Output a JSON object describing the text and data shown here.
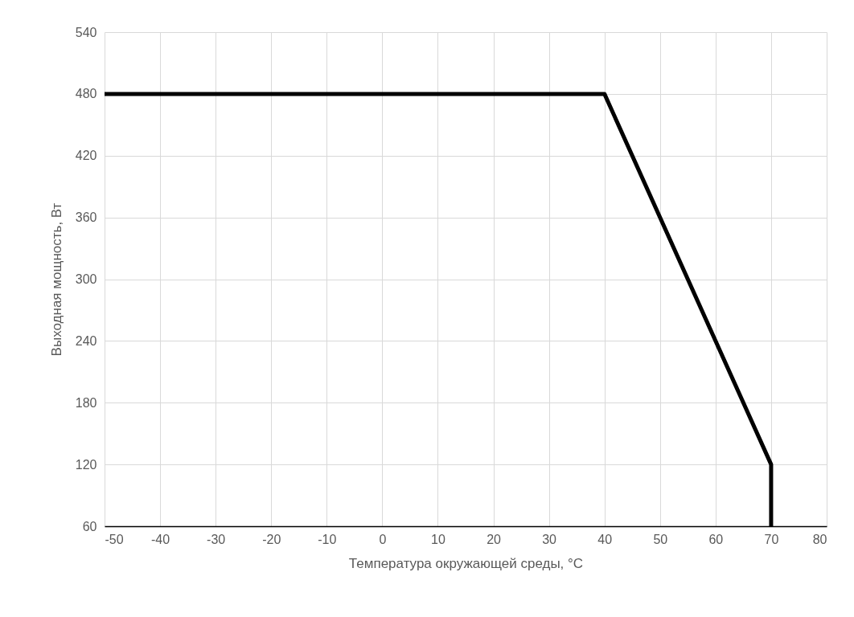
{
  "chart_data": {
    "type": "line",
    "xlabel": "Температура окружающей среды, °C",
    "ylabel": "Выходная мощность, Вт",
    "x": [
      -50,
      40,
      70,
      70
    ],
    "series": [
      {
        "color": "#000000",
        "values": [
          480,
          480,
          120,
          60
        ]
      }
    ],
    "xlim": [
      -50,
      80
    ],
    "xticks": [
      -50,
      -40,
      -30,
      -20,
      -10,
      0,
      10,
      20,
      30,
      40,
      50,
      60,
      70,
      80
    ],
    "ylim": [
      60,
      540
    ],
    "yticks": [
      60,
      120,
      180,
      240,
      300,
      360,
      420,
      480,
      540
    ],
    "grid": true,
    "marker": "none",
    "line_style": "solid"
  }
}
